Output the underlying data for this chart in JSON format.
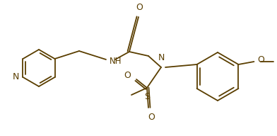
{
  "bg_color": "#ffffff",
  "line_color": "#5a3e00",
  "line_width": 1.3,
  "font_size": 8.5,
  "figsize": [
    3.92,
    1.92
  ],
  "dpi": 100,
  "xlim": [
    0,
    392
  ],
  "ylim": [
    0,
    192
  ]
}
